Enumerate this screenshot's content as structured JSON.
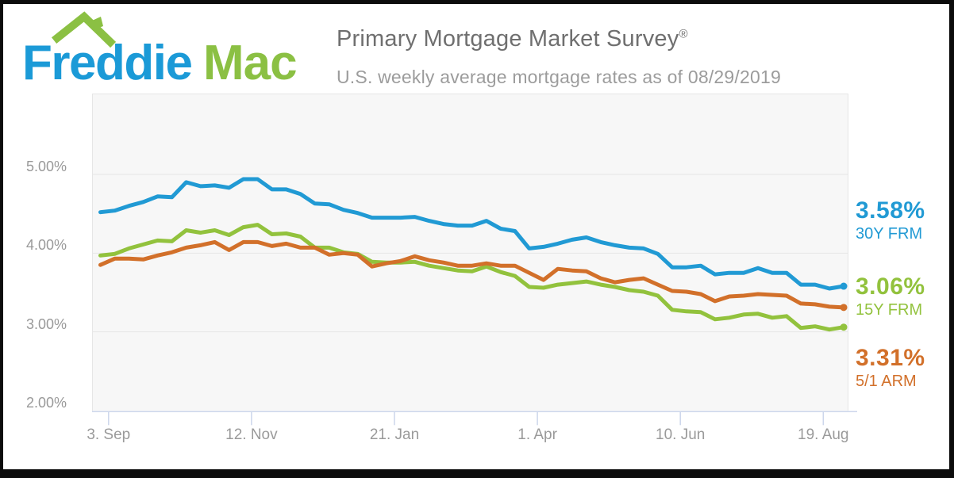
{
  "header": {
    "logo_text_1": "Freddie",
    "logo_text_2": "Mac",
    "title": "Primary Mortgage Market Survey",
    "registered_mark": "®",
    "subtitle": "U.S. weekly average mortgage rates as of 08/29/2019"
  },
  "colors": {
    "logo_blue": "#1b9ad7",
    "logo_green": "#8bc043",
    "plot_background": "#f7f7f7",
    "gridline": "#e6e6e6",
    "axis_line": "#ccd6eb",
    "axis_text": "#999999"
  },
  "chart_data": {
    "type": "line",
    "title": "",
    "xlabel": "",
    "ylabel": "",
    "x_unit": "weekly, Aug 30 2018 - Aug 29 2019",
    "ylim": [
      2.0,
      6.03
    ],
    "grid": true,
    "legend_position": "right",
    "x_ticks": [
      {
        "label": "3. Sep",
        "day": 4
      },
      {
        "label": "12. Nov",
        "day": 74
      },
      {
        "label": "21. Jan",
        "day": 144
      },
      {
        "label": "1. Apr",
        "day": 214
      },
      {
        "label": "10. Jun",
        "day": 284
      },
      {
        "label": "19. Aug",
        "day": 354
      }
    ],
    "y_ticks": [
      {
        "label": "5.00%",
        "value": 5
      },
      {
        "label": "4.00%",
        "value": 4
      },
      {
        "label": "3.00%",
        "value": 3
      },
      {
        "label": "2.00%",
        "value": 2
      }
    ],
    "series": [
      {
        "name": "30Y FRM",
        "final_value_label": "3.58%",
        "color": "#219ad4",
        "values": [
          4.52,
          4.54,
          4.6,
          4.65,
          4.72,
          4.71,
          4.9,
          4.85,
          4.86,
          4.83,
          4.94,
          4.94,
          4.81,
          4.81,
          4.75,
          4.63,
          4.62,
          4.55,
          4.51,
          4.45,
          4.45,
          4.45,
          4.46,
          4.41,
          4.37,
          4.35,
          4.35,
          4.41,
          4.31,
          4.28,
          4.06,
          4.08,
          4.12,
          4.17,
          4.2,
          4.14,
          4.1,
          4.07,
          4.06,
          3.99,
          3.82,
          3.82,
          3.84,
          3.73,
          3.75,
          3.75,
          3.81,
          3.75,
          3.75,
          3.6,
          3.6,
          3.55,
          3.58
        ]
      },
      {
        "name": "15Y FRM",
        "final_value_label": "3.06%",
        "color": "#92c23d",
        "values": [
          3.97,
          3.99,
          4.06,
          4.11,
          4.16,
          4.15,
          4.29,
          4.26,
          4.29,
          4.23,
          4.33,
          4.36,
          4.24,
          4.25,
          4.21,
          4.07,
          4.07,
          4.01,
          3.99,
          3.89,
          3.88,
          3.88,
          3.89,
          3.84,
          3.81,
          3.78,
          3.77,
          3.83,
          3.76,
          3.71,
          3.57,
          3.56,
          3.6,
          3.62,
          3.64,
          3.6,
          3.57,
          3.53,
          3.51,
          3.46,
          3.28,
          3.26,
          3.25,
          3.16,
          3.18,
          3.22,
          3.23,
          3.18,
          3.2,
          3.05,
          3.07,
          3.03,
          3.06
        ]
      },
      {
        "name": "5/1 ARM",
        "final_value_label": "3.31%",
        "color": "#d2702a",
        "values": [
          3.85,
          3.93,
          3.93,
          3.92,
          3.97,
          4.01,
          4.07,
          4.1,
          4.14,
          4.04,
          4.14,
          4.14,
          4.09,
          4.12,
          4.07,
          4.07,
          3.98,
          4.0,
          3.98,
          3.83,
          3.87,
          3.9,
          3.96,
          3.91,
          3.88,
          3.84,
          3.84,
          3.87,
          3.84,
          3.84,
          3.75,
          3.66,
          3.8,
          3.78,
          3.77,
          3.68,
          3.63,
          3.66,
          3.68,
          3.6,
          3.52,
          3.51,
          3.48,
          3.39,
          3.45,
          3.46,
          3.48,
          3.47,
          3.46,
          3.36,
          3.35,
          3.32,
          3.31
        ]
      }
    ]
  }
}
